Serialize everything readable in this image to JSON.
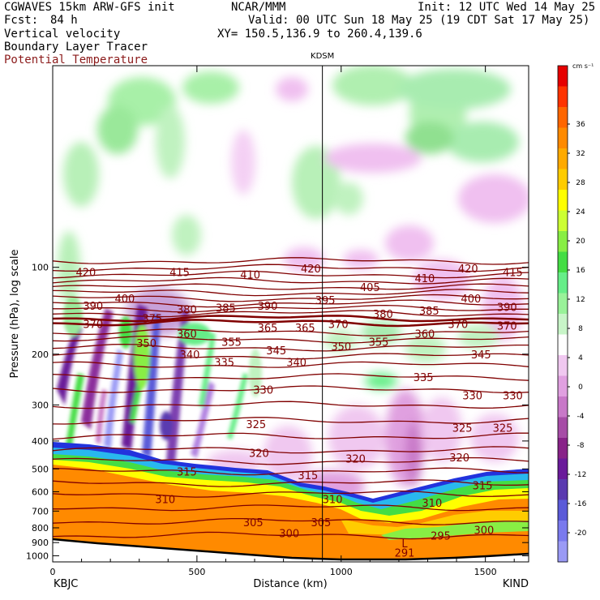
{
  "header": {
    "model": "CGWAVES 15km ARW-GFS init",
    "forecast_label": "Fcst:",
    "forecast_value": "84 h",
    "org": "NCAR/MMM",
    "init": "Init: 12 UTC Wed 14 May 25",
    "valid": "Valid: 00 UTC Sun 18 May 25 (19 CDT Sat 17 May 25)",
    "xy": "XY= 150.5,136.9 to 260.4,139.6",
    "field1": "Vertical velocity",
    "field2": "Boundary Layer Tracer",
    "field3": "Potential Temperature"
  },
  "chart_data": {
    "type": "heatmap",
    "title": "",
    "xlabel": "Distance (km)",
    "ylabel": "Pressure (hPa), log scale",
    "y_scale": "log",
    "xlim": [
      0,
      1650
    ],
    "ylim": [
      1050,
      20
    ],
    "x_ticks": [
      0,
      500,
      1000,
      1500
    ],
    "y_ticks": [
      100,
      200,
      300,
      400,
      500,
      600,
      700,
      800,
      900,
      1000
    ],
    "endpoints": {
      "left": "KBJC",
      "right": "KIND"
    },
    "marker": {
      "label": "KDSM",
      "x_km": 935
    },
    "colorbar": {
      "units": "cm s⁻¹",
      "tick_labels": [
        36,
        32,
        28,
        24,
        20,
        16,
        12,
        8,
        4,
        0,
        -4,
        -8,
        -12,
        -16,
        -20
      ],
      "colors": [
        "#e60000",
        "#ff3300",
        "#ff6600",
        "#ff8a00",
        "#ffaa00",
        "#ffcc00",
        "#ffff00",
        "#ccff33",
        "#88ee44",
        "#44dd44",
        "#66ee88",
        "#99f299",
        "#c8f5c8",
        "#ffffff",
        "#f0c8f0",
        "#e0a0e0",
        "#c878c8",
        "#a64ca6",
        "#882288",
        "#6a1a9a",
        "#5a3ab0",
        "#5a5ad8",
        "#7a7aee",
        "#9a9af5"
      ]
    },
    "isentrope_labels": [
      {
        "x": 115,
        "p": 104,
        "label": "420"
      },
      {
        "x": 440,
        "p": 104,
        "label": "415"
      },
      {
        "x": 685,
        "p": 106,
        "label": "410"
      },
      {
        "x": 895,
        "p": 101,
        "label": "420"
      },
      {
        "x": 1100,
        "p": 117,
        "label": "405"
      },
      {
        "x": 1290,
        "p": 109,
        "label": "410"
      },
      {
        "x": 1440,
        "p": 101,
        "label": "420"
      },
      {
        "x": 1595,
        "p": 104,
        "label": "415"
      },
      {
        "x": 250,
        "p": 128,
        "label": "400"
      },
      {
        "x": 1450,
        "p": 128,
        "label": "400"
      },
      {
        "x": 140,
        "p": 136,
        "label": "390"
      },
      {
        "x": 465,
        "p": 140,
        "label": "380"
      },
      {
        "x": 600,
        "p": 138,
        "label": "385"
      },
      {
        "x": 745,
        "p": 136,
        "label": "390"
      },
      {
        "x": 945,
        "p": 130,
        "label": "395"
      },
      {
        "x": 1145,
        "p": 145,
        "label": "380"
      },
      {
        "x": 1305,
        "p": 141,
        "label": "385"
      },
      {
        "x": 1575,
        "p": 137,
        "label": "390"
      },
      {
        "x": 345,
        "p": 150,
        "label": "375"
      },
      {
        "x": 140,
        "p": 157,
        "label": "370"
      },
      {
        "x": 990,
        "p": 157,
        "label": "370"
      },
      {
        "x": 1405,
        "p": 157,
        "label": "370"
      },
      {
        "x": 1575,
        "p": 159,
        "label": "370"
      },
      {
        "x": 745,
        "p": 162,
        "label": "365"
      },
      {
        "x": 875,
        "p": 162,
        "label": "365"
      },
      {
        "x": 465,
        "p": 170,
        "label": "360"
      },
      {
        "x": 1290,
        "p": 170,
        "label": "360"
      },
      {
        "x": 325,
        "p": 183,
        "label": "350"
      },
      {
        "x": 620,
        "p": 181,
        "label": "355"
      },
      {
        "x": 1000,
        "p": 188,
        "label": "350"
      },
      {
        "x": 1130,
        "p": 181,
        "label": "355"
      },
      {
        "x": 475,
        "p": 200,
        "label": "340"
      },
      {
        "x": 775,
        "p": 194,
        "label": "345"
      },
      {
        "x": 1485,
        "p": 200,
        "label": "345"
      },
      {
        "x": 595,
        "p": 213,
        "label": "335"
      },
      {
        "x": 845,
        "p": 213,
        "label": "340"
      },
      {
        "x": 1285,
        "p": 240,
        "label": "335"
      },
      {
        "x": 730,
        "p": 265,
        "label": "330"
      },
      {
        "x": 1455,
        "p": 278,
        "label": "330"
      },
      {
        "x": 1595,
        "p": 278,
        "label": "330"
      },
      {
        "x": 705,
        "p": 350,
        "label": "325"
      },
      {
        "x": 1420,
        "p": 360,
        "label": "325"
      },
      {
        "x": 1560,
        "p": 360,
        "label": "325"
      },
      {
        "x": 715,
        "p": 440,
        "label": "320"
      },
      {
        "x": 1050,
        "p": 460,
        "label": "320"
      },
      {
        "x": 1410,
        "p": 455,
        "label": "320"
      },
      {
        "x": 465,
        "p": 510,
        "label": "315"
      },
      {
        "x": 885,
        "p": 525,
        "label": "315"
      },
      {
        "x": 1490,
        "p": 570,
        "label": "315"
      },
      {
        "x": 390,
        "p": 635,
        "label": "310"
      },
      {
        "x": 970,
        "p": 635,
        "label": "310"
      },
      {
        "x": 1315,
        "p": 655,
        "label": "310"
      },
      {
        "x": 695,
        "p": 765,
        "label": "305"
      },
      {
        "x": 930,
        "p": 765,
        "label": "305"
      },
      {
        "x": 820,
        "p": 835,
        "label": "300"
      },
      {
        "x": 1495,
        "p": 812,
        "label": "300"
      },
      {
        "x": 1345,
        "p": 850,
        "label": "295"
      },
      {
        "x": 1220,
        "p": 905,
        "label": "L"
      },
      {
        "x": 1220,
        "p": 975,
        "label": "291"
      }
    ]
  }
}
